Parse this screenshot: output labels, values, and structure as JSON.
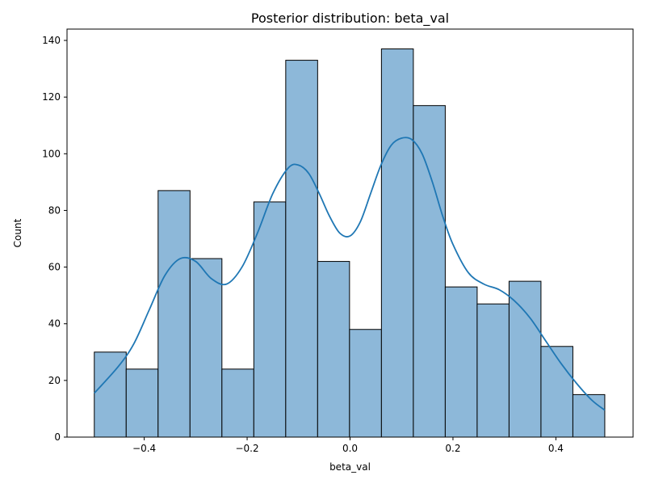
{
  "chart_data": {
    "type": "histogram",
    "title": "Posterior distribution: beta_val",
    "xlabel": "beta_val",
    "ylabel": "Count",
    "xlim": [
      -0.55,
      0.55
    ],
    "ylim": [
      0,
      144
    ],
    "x_ticks": [
      -0.4,
      -0.2,
      0.0,
      0.2,
      0.4
    ],
    "x_tick_labels": [
      "−0.4",
      "−0.2",
      "0.0",
      "0.2",
      "0.4"
    ],
    "y_ticks": [
      0,
      20,
      40,
      60,
      80,
      100,
      120,
      140
    ],
    "y_tick_labels": [
      "0",
      "20",
      "40",
      "60",
      "80",
      "100",
      "120",
      "140"
    ],
    "grid": false,
    "bin_edges": [
      -0.497,
      -0.435,
      -0.373,
      -0.311,
      -0.249,
      -0.187,
      -0.125,
      -0.063,
      -0.001,
      0.061,
      0.123,
      0.185,
      0.247,
      0.309,
      0.371,
      0.433,
      0.495
    ],
    "counts": [
      30,
      24,
      87,
      63,
      24,
      83,
      133,
      62,
      38,
      137,
      117,
      53,
      47,
      55,
      32,
      15
    ],
    "bar_color": "#8db8d9",
    "bar_edge_color": "#000000",
    "kde": {
      "color": "#1f77b4",
      "x": [
        -0.497,
        -0.45,
        -0.42,
        -0.39,
        -0.36,
        -0.33,
        -0.3,
        -0.27,
        -0.24,
        -0.21,
        -0.18,
        -0.15,
        -0.12,
        -0.1,
        -0.08,
        -0.06,
        -0.04,
        -0.02,
        0.0,
        0.02,
        0.04,
        0.06,
        0.08,
        0.1,
        0.12,
        0.14,
        0.16,
        0.18,
        0.2,
        0.23,
        0.26,
        0.29,
        0.32,
        0.35,
        0.38,
        0.41,
        0.44,
        0.47,
        0.495
      ],
      "y": [
        15.5,
        25,
        33,
        45,
        57,
        63,
        62,
        56,
        54,
        60,
        72,
        86,
        95,
        96,
        93,
        86,
        78,
        72,
        71,
        76,
        86,
        96,
        103,
        105.5,
        105,
        100,
        90,
        78,
        68,
        58,
        54,
        52,
        48,
        42,
        34,
        26,
        19,
        13,
        9.5
      ]
    }
  }
}
